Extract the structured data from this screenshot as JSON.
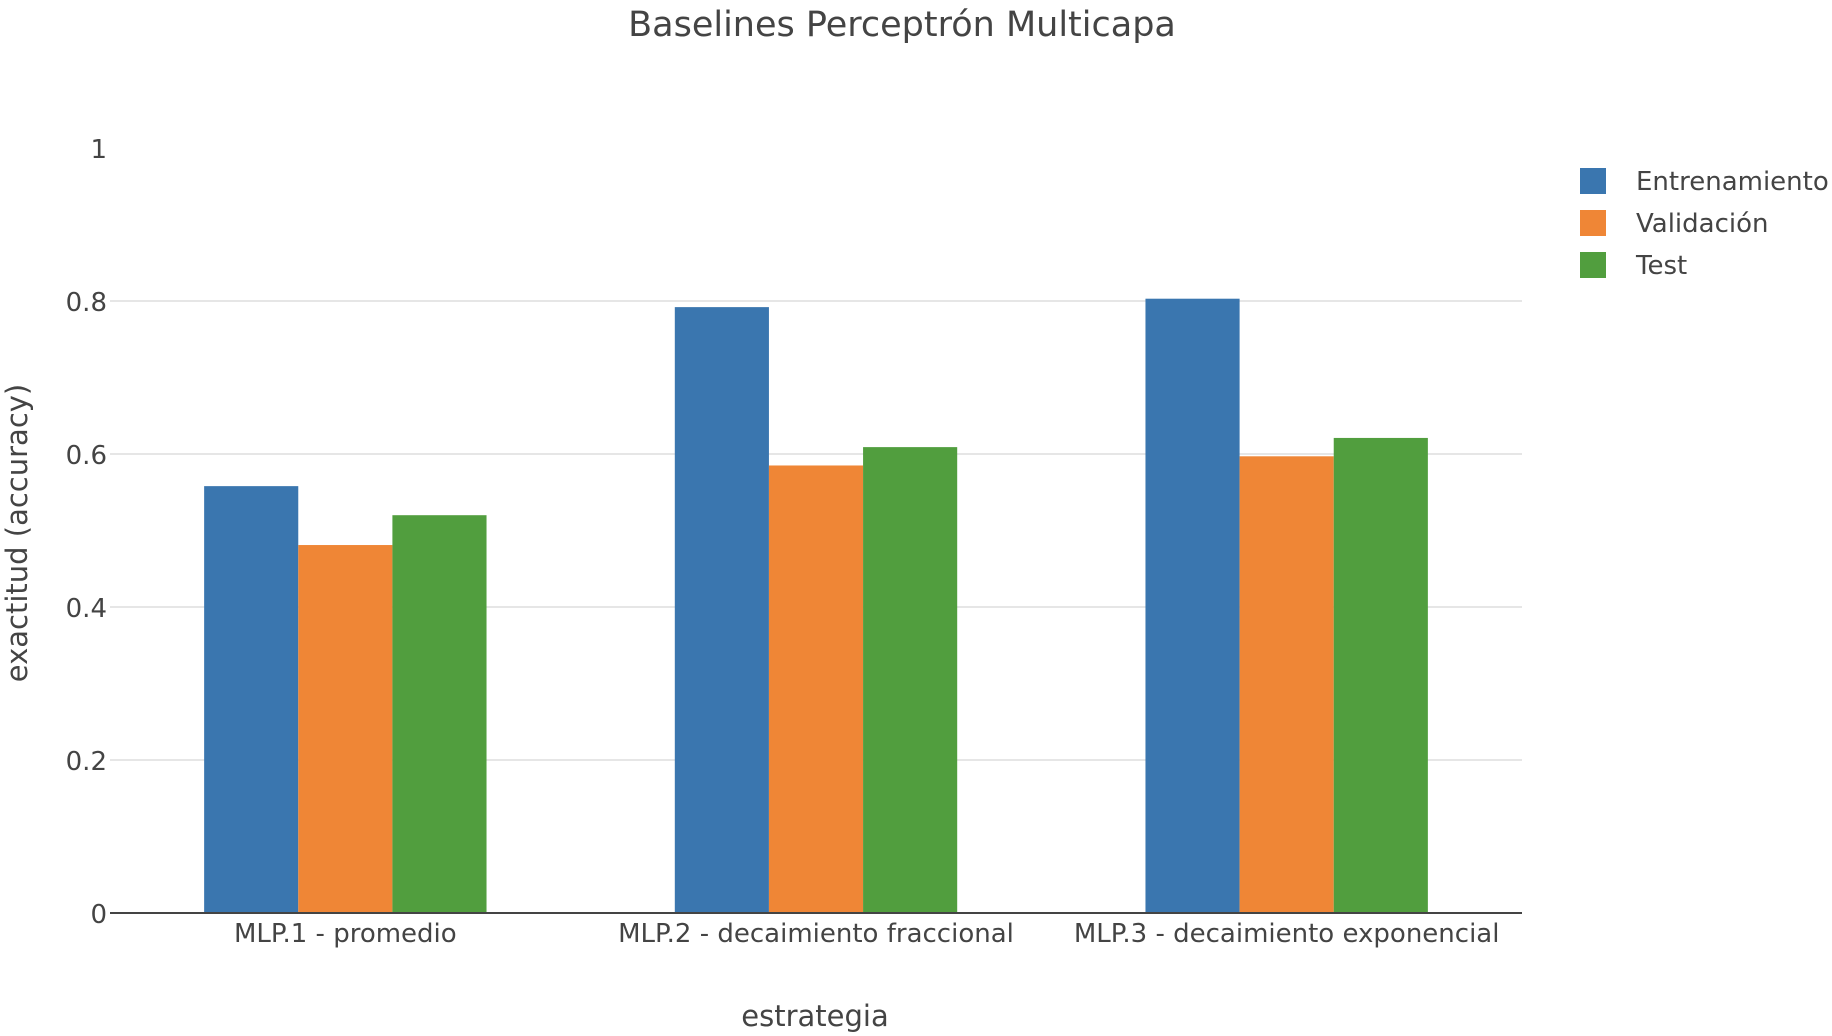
{
  "chart_data": {
    "type": "bar",
    "title": "Baselines Perceptrón Multicapa",
    "xlabel": "estrategia",
    "ylabel": "exactitud (accuracy)",
    "ylim": [
      0,
      1
    ],
    "yticks": [
      0,
      0.2,
      0.4,
      0.6,
      0.8,
      1
    ],
    "ytick_labels": [
      "0",
      "0.2",
      "0.4",
      "0.6",
      "0.8",
      "1"
    ],
    "grid": true,
    "legend_position": "top-right",
    "categories": [
      "MLP.1 - promedio",
      "MLP.2 - decaimiento fraccional",
      "MLP.3 - decaimiento exponencial"
    ],
    "series": [
      {
        "name": "Entrenamiento",
        "color": "#3a76af",
        "values": [
          0.558,
          0.792,
          0.803
        ]
      },
      {
        "name": "Validación",
        "color": "#ef8636",
        "values": [
          0.481,
          0.585,
          0.597
        ]
      },
      {
        "name": "Test",
        "color": "#519e3e",
        "values": [
          0.52,
          0.609,
          0.621
        ]
      }
    ]
  }
}
